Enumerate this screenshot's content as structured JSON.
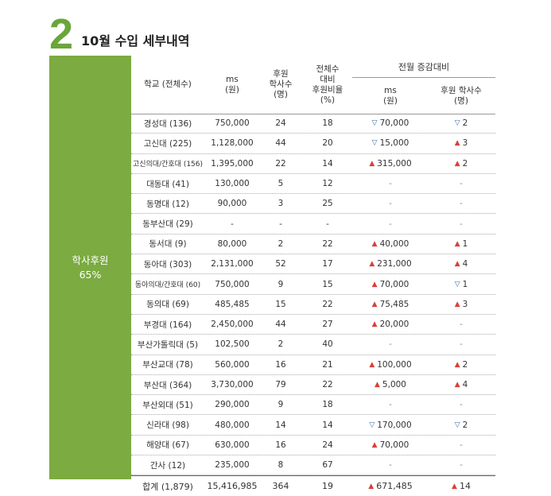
{
  "header": {
    "number": "2",
    "title": "10월 수입 세부내역"
  },
  "sidebar": {
    "label": "학사후원",
    "percent": "65%"
  },
  "columns": {
    "school": "학교 (전체수)",
    "ms": [
      "ms",
      "(원)"
    ],
    "donors": [
      "후원",
      "학사수",
      "(명)"
    ],
    "ratio": [
      "전체수",
      "대비",
      "후원비율",
      "(%)"
    ],
    "group": "전월 증감대비",
    "ms_change": [
      "ms",
      "(원)"
    ],
    "donor_change": [
      "후원 학사수",
      "(명)"
    ]
  },
  "rows": [
    {
      "school": "경성대 (136)",
      "ms": "750,000",
      "donors": "24",
      "ratio": "18",
      "ms_dir": "down",
      "ms_change": "70,000",
      "d_dir": "down",
      "d_change": "2"
    },
    {
      "school": "고신대 (225)",
      "ms": "1,128,000",
      "donors": "44",
      "ratio": "20",
      "ms_dir": "down",
      "ms_change": "15,000",
      "d_dir": "up",
      "d_change": "3"
    },
    {
      "school": "고신의대/간호대 (156)",
      "ms": "1,395,000",
      "donors": "22",
      "ratio": "14",
      "ms_dir": "up",
      "ms_change": "315,000",
      "d_dir": "up",
      "d_change": "2"
    },
    {
      "school": "대동대 (41)",
      "ms": "130,000",
      "donors": "5",
      "ratio": "12",
      "ms_dir": "none",
      "ms_change": "-",
      "d_dir": "none",
      "d_change": "-"
    },
    {
      "school": "동명대 (12)",
      "ms": "90,000",
      "donors": "3",
      "ratio": "25",
      "ms_dir": "none",
      "ms_change": "-",
      "d_dir": "none",
      "d_change": "-"
    },
    {
      "school": "동부산대 (29)",
      "ms": "-",
      "donors": "-",
      "ratio": "-",
      "ms_dir": "none",
      "ms_change": "-",
      "d_dir": "none",
      "d_change": "-"
    },
    {
      "school": "동서대 (9)",
      "ms": "80,000",
      "donors": "2",
      "ratio": "22",
      "ms_dir": "up",
      "ms_change": "40,000",
      "d_dir": "up",
      "d_change": "1"
    },
    {
      "school": "동아대 (303)",
      "ms": "2,131,000",
      "donors": "52",
      "ratio": "17",
      "ms_dir": "up",
      "ms_change": "231,000",
      "d_dir": "up",
      "d_change": "4"
    },
    {
      "school": "동아의대/간호대 (60)",
      "ms": "750,000",
      "donors": "9",
      "ratio": "15",
      "ms_dir": "up",
      "ms_change": "70,000",
      "d_dir": "down",
      "d_change": "1"
    },
    {
      "school": "동의대 (69)",
      "ms": "485,485",
      "donors": "15",
      "ratio": "22",
      "ms_dir": "up",
      "ms_change": "75,485",
      "d_dir": "up",
      "d_change": "3"
    },
    {
      "school": "부경대 (164)",
      "ms": "2,450,000",
      "donors": "44",
      "ratio": "27",
      "ms_dir": "up",
      "ms_change": "20,000",
      "d_dir": "none",
      "d_change": "-"
    },
    {
      "school": "부산가톨릭대 (5)",
      "ms": "102,500",
      "donors": "2",
      "ratio": "40",
      "ms_dir": "none",
      "ms_change": "-",
      "d_dir": "none",
      "d_change": "-"
    },
    {
      "school": "부산교대 (78)",
      "ms": "560,000",
      "donors": "16",
      "ratio": "21",
      "ms_dir": "up",
      "ms_change": "100,000",
      "d_dir": "up",
      "d_change": "2"
    },
    {
      "school": "부산대 (364)",
      "ms": "3,730,000",
      "donors": "79",
      "ratio": "22",
      "ms_dir": "up",
      "ms_change": "5,000",
      "d_dir": "up",
      "d_change": "4"
    },
    {
      "school": "부산외대 (51)",
      "ms": "290,000",
      "donors": "9",
      "ratio": "18",
      "ms_dir": "none",
      "ms_change": "-",
      "d_dir": "none",
      "d_change": "-"
    },
    {
      "school": "신라대 (98)",
      "ms": "480,000",
      "donors": "14",
      "ratio": "14",
      "ms_dir": "down",
      "ms_change": "170,000",
      "d_dir": "down",
      "d_change": "2"
    },
    {
      "school": "해양대 (67)",
      "ms": "630,000",
      "donors": "16",
      "ratio": "24",
      "ms_dir": "up",
      "ms_change": "70,000",
      "d_dir": "none",
      "d_change": "-"
    },
    {
      "school": "간사 (12)",
      "ms": "235,000",
      "donors": "8",
      "ratio": "67",
      "ms_dir": "none",
      "ms_change": "-",
      "d_dir": "none",
      "d_change": "-"
    }
  ],
  "total": {
    "school": "합계 (1,879)",
    "ms": "15,416,985",
    "donors": "364",
    "ratio": "19",
    "ms_dir": "up",
    "ms_change": "671,485",
    "d_dir": "up",
    "d_change": "14"
  },
  "glyphs": {
    "up": "▲",
    "down": "▽"
  },
  "colors": {
    "accent": "#7bab41",
    "up": "#d9403a",
    "down": "#3b6fa8"
  }
}
